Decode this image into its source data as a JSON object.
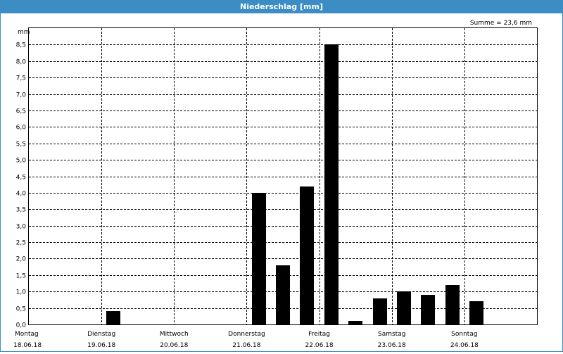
{
  "window": {
    "title": "Niederschlag [mm]"
  },
  "colors": {
    "titlebar": "#3c8dc4",
    "bar": "#000000",
    "grid": "#000000",
    "background": "#ffffff"
  },
  "chart_data": {
    "type": "bar",
    "title": "Niederschlag [mm]",
    "ylabel": "mm",
    "xlabel": "",
    "summary": "Summe = 23,6 mm",
    "ylim": [
      0,
      9.0
    ],
    "yticks": [
      {
        "value": 0,
        "label": "0,0"
      },
      {
        "value": 0.5,
        "label": "0,5"
      },
      {
        "value": 1.0,
        "label": "1,0"
      },
      {
        "value": 1.5,
        "label": "1,5"
      },
      {
        "value": 2.0,
        "label": "2,0"
      },
      {
        "value": 2.5,
        "label": "2,5"
      },
      {
        "value": 3.0,
        "label": "3,0"
      },
      {
        "value": 3.5,
        "label": "3,5"
      },
      {
        "value": 4.0,
        "label": "4,0"
      },
      {
        "value": 4.5,
        "label": "4,5"
      },
      {
        "value": 5.0,
        "label": "5,0"
      },
      {
        "value": 5.5,
        "label": "5,5"
      },
      {
        "value": 6.0,
        "label": "6,0"
      },
      {
        "value": 6.5,
        "label": "6,5"
      },
      {
        "value": 7.0,
        "label": "7,0"
      },
      {
        "value": 7.5,
        "label": "7,5"
      },
      {
        "value": 8.0,
        "label": "8,0"
      },
      {
        "value": 8.5,
        "label": "8,5"
      }
    ],
    "days": [
      {
        "name": "Montag",
        "date": "18.06.18"
      },
      {
        "name": "Dienstag",
        "date": "19.06.18"
      },
      {
        "name": "Mittwoch",
        "date": "20.06.18"
      },
      {
        "name": "Donnerstag",
        "date": "21.06.18"
      },
      {
        "name": "Freitag",
        "date": "22.06.18"
      },
      {
        "name": "Samstag",
        "date": "23.06.18"
      },
      {
        "name": "Sonntag",
        "date": "24.06.18"
      }
    ],
    "bars_per_day": 3,
    "values": [
      0,
      0,
      0,
      0.4,
      0,
      0,
      0,
      0,
      0,
      4.0,
      1.8,
      4.2,
      8.5,
      0.1,
      0.8,
      1.0,
      0.9,
      1.2,
      0.7,
      0,
      0
    ],
    "grid": true
  }
}
